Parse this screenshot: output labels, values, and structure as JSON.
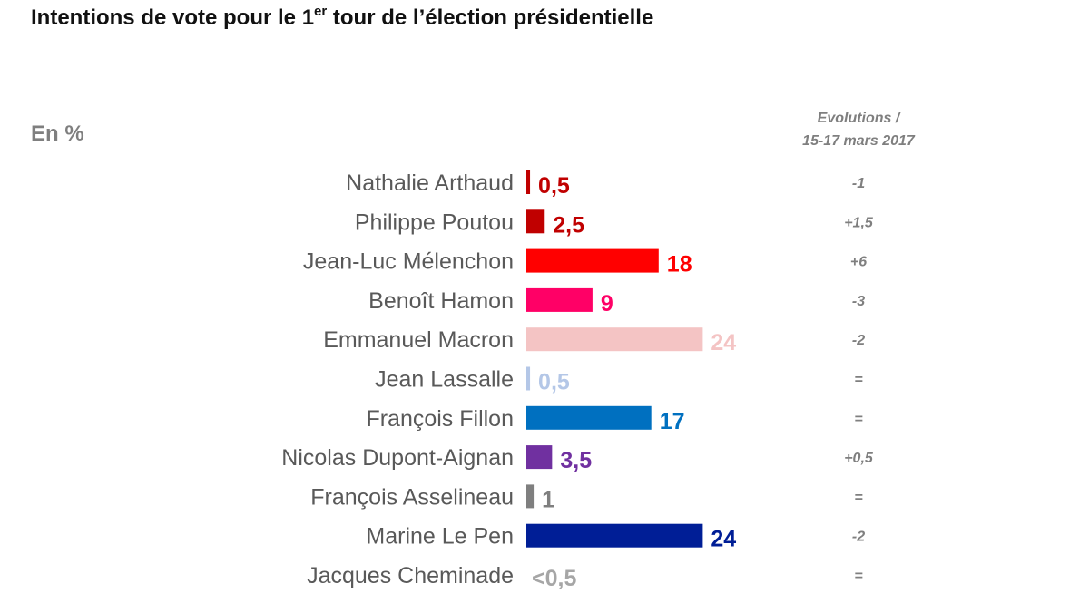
{
  "title": {
    "prefix": "Intentions de vote pour le 1",
    "superscript": "er",
    "suffix": " tour de l’élection présidentielle"
  },
  "unit_label": "En %",
  "evolution_header": {
    "line1": "Evolutions /",
    "line2": "15-17 mars 2017"
  },
  "chart_data": {
    "type": "bar",
    "orientation": "horizontal",
    "title": "Intentions de vote pour le 1er tour de l’élection présidentielle",
    "unit": "En %",
    "xlim": [
      0,
      24
    ],
    "categories": [
      "Nathalie Arthaud",
      "Philippe Poutou",
      "Jean-Luc Mélenchon",
      "Benoît Hamon",
      "Emmanuel Macron",
      "Jean Lassalle",
      "François Fillon",
      "Nicolas Dupont-Aignan",
      "François Asselineau",
      "Marine Le Pen",
      "Jacques Cheminade"
    ],
    "values": [
      0.5,
      2.5,
      18,
      9,
      24,
      0.5,
      17,
      3.5,
      1,
      24,
      0
    ],
    "value_labels": [
      "0,5",
      "2,5",
      "18",
      "9",
      "24",
      "0,5",
      "17",
      "3,5",
      "1",
      "24",
      "<0,5"
    ],
    "colors": [
      "#c00000",
      "#c00000",
      "#ff0000",
      "#ff0066",
      "#f4c4c4",
      "#b4c7e7",
      "#0070c0",
      "#7030a0",
      "#7f7f7f",
      "#001e96",
      "#a6a6a6"
    ],
    "evolutions": [
      "-1",
      "+1,5",
      "+6",
      "-3",
      "-2",
      "=",
      "=",
      "+0,5",
      "=",
      "-2",
      "="
    ]
  }
}
